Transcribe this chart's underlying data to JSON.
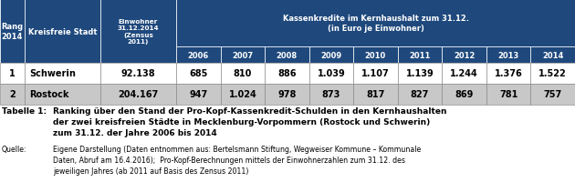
{
  "header_bg": "#1F497D",
  "header_text": "#FFFFFF",
  "row1_bg": "#C0C0C0",
  "row2_bg": "#C0C0C0",
  "years": [
    "2006",
    "2007",
    "2008",
    "2009",
    "2010",
    "2011",
    "2012",
    "2013",
    "2014"
  ],
  "rows": [
    {
      "rang": "1",
      "stadt": "Schwerin",
      "einwohner": "92.138",
      "values": [
        "685",
        "810",
        "886",
        "1.039",
        "1.107",
        "1.139",
        "1.244",
        "1.376",
        "1.522"
      ]
    },
    {
      "rang": "2",
      "stadt": "Rostock",
      "einwohner": "204.167",
      "values": [
        "947",
        "1.024",
        "978",
        "873",
        "817",
        "827",
        "869",
        "781",
        "757"
      ]
    }
  ],
  "tabelle_label": "Tabelle 1:",
  "tabelle_text": "Ranking über den Stand der Pro-Kopf-Kassenkredit-Schulden in den Kernhaushalten\nder zwei kreisfreien Städte in Mecklenburg-Vorpommern (Rostock und Schwerin)\nzum 31.12. der Jahre 2006 bis 2014",
  "quelle_label": "Quelle:",
  "quelle_text": "Eigene Darstellung (Daten entnommen aus: Bertelsmann Stiftung, Wegweiser Kommune – Kommunale\nDaten, Abruf am 16.4.2016);  Pro-Kopf-Berechnungen mittels der Einwohnerzahlen zum 31.12. des\njeweiligen Jahres (ab 2011 auf Basis des Zensus 2011)"
}
